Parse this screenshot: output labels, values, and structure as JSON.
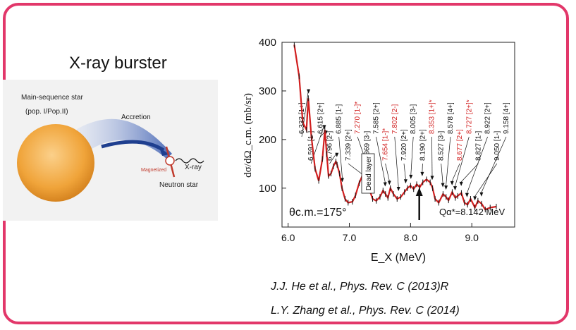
{
  "slide": {
    "accent_color": "#e2376a",
    "burster_title": "X-ray burster",
    "references": [
      "J.J. He et al., Phys. Rev. C (2013)R",
      "L.Y. Zhang et al., Phys. Rev. C (2014)"
    ]
  },
  "diagram": {
    "star_label": "Main-sequence star",
    "star_sublabel": "(pop. I/Pop.II)",
    "accretion_label": "Accretion",
    "magnetized_label": "Magnetized",
    "xray_label": "X-ray",
    "neutron_star_label": "Neutron star",
    "star_color": "#f0a43a",
    "flow_color": "#4a6fc0",
    "neutron_color": "#c0392b"
  },
  "chart_data": {
    "type": "line",
    "title": "",
    "xlabel": "E_X (MeV)",
    "ylabel": "dσ/dΩ_c.m. (mb/sr)",
    "xlim": [
      5.9,
      9.7
    ],
    "ylim": [
      20,
      400
    ],
    "xticks": [
      "6.0",
      "7.0",
      "8.0",
      "9.0"
    ],
    "yticks": [
      "100",
      "200",
      "300",
      "400"
    ],
    "angle_label": "θc.m.=175°",
    "q_label": "Qα*=8.142 MeV",
    "q_value": 8.142,
    "dead_layer_label": "Dead layer",
    "grid": false,
    "series": [
      {
        "name": "",
        "color": "#d11f1f",
        "x": [
          6.1,
          6.18,
          6.24,
          6.3,
          6.33,
          6.38,
          6.44,
          6.5,
          6.56,
          6.6,
          6.63,
          6.66,
          6.7,
          6.74,
          6.78,
          6.8,
          6.84,
          6.88,
          6.93,
          6.98,
          7.05,
          7.1,
          7.16,
          7.22,
          7.27,
          7.32,
          7.38,
          7.44,
          7.5,
          7.55,
          7.59,
          7.63,
          7.67,
          7.72,
          7.78,
          7.84,
          7.9,
          7.95,
          8.0,
          8.05,
          8.1,
          8.15,
          8.2,
          8.26,
          8.32,
          8.36,
          8.4,
          8.46,
          8.53,
          8.58,
          8.62,
          8.68,
          8.73,
          8.77,
          8.83,
          8.88,
          8.93,
          8.98,
          9.05,
          9.1,
          9.16,
          9.22,
          9.3,
          9.4
        ],
        "y": [
          395,
          330,
          235,
          220,
          285,
          205,
          140,
          115,
          160,
          220,
          170,
          125,
          130,
          145,
          155,
          148,
          130,
          100,
          78,
          70,
          72,
          85,
          110,
          128,
          132,
          100,
          78,
          74,
          82,
          95,
          88,
          80,
          100,
          88,
          78,
          82,
          92,
          100,
          105,
          98,
          108,
          102,
          112,
          118,
          112,
          100,
          78,
          70,
          88,
          82,
          75,
          92,
          80,
          84,
          90,
          70,
          66,
          78,
          60,
          74,
          68,
          56,
          60,
          62
        ]
      }
    ],
    "annotations": [
      {
        "text": "6.333 [1+]",
        "x": 6.333,
        "red": false
      },
      {
        "text": "6.591 [1-]",
        "x": 6.591,
        "red": false
      },
      {
        "text": "6.615 [2+]",
        "x": 6.615,
        "red": false
      },
      {
        "text": "6.796 [2-]",
        "x": 6.796,
        "red": false
      },
      {
        "text": "6.885 [1-]",
        "x": 6.885,
        "red": false
      },
      {
        "text": "7.339 [2+]",
        "x": 7.339,
        "red": false
      },
      {
        "text": "7.270 [1-]*",
        "x": 7.27,
        "red": true
      },
      {
        "text": "7.369 [3-]",
        "x": 7.369,
        "red": false
      },
      {
        "text": "7.585 [2+]",
        "x": 7.585,
        "red": false
      },
      {
        "text": "7.654 [1-]*",
        "x": 7.654,
        "red": true
      },
      {
        "text": "7.802 [2-]",
        "x": 7.802,
        "red": true
      },
      {
        "text": "7.920 [2+]",
        "x": 7.92,
        "red": false
      },
      {
        "text": "8.005 [3-]",
        "x": 8.005,
        "red": false
      },
      {
        "text": "8.190 [2+]",
        "x": 8.19,
        "red": false
      },
      {
        "text": "8.353 [1+]*",
        "x": 8.353,
        "red": true
      },
      {
        "text": "8.527 [3-]",
        "x": 8.527,
        "red": false
      },
      {
        "text": "8.578 [4+]",
        "x": 8.578,
        "red": false
      },
      {
        "text": "8.677 [2+]",
        "x": 8.677,
        "red": true
      },
      {
        "text": "8.727 [2+]*",
        "x": 8.727,
        "red": true
      },
      {
        "text": "8.827 [1-]",
        "x": 8.827,
        "red": false
      },
      {
        "text": "8.922 [2+]",
        "x": 8.922,
        "red": false
      },
      {
        "text": "9.050 [1-]",
        "x": 9.05,
        "red": false
      },
      {
        "text": "9.158 [4+]",
        "x": 9.158,
        "red": false
      }
    ]
  }
}
